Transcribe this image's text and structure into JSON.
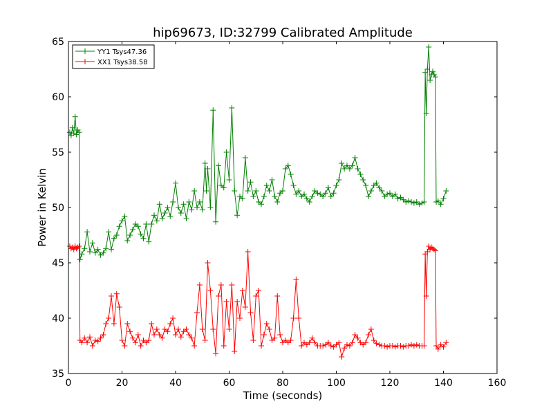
{
  "chart_data": {
    "type": "line",
    "title": "hip69673, ID:32799 Calibrated Amplitude",
    "xlabel": "Time (seconds)",
    "ylabel": "Power in Kelvin",
    "xlim": [
      0,
      160
    ],
    "ylim": [
      35,
      65
    ],
    "xticks": [
      "0",
      "20",
      "40",
      "60",
      "80",
      "100",
      "120",
      "140",
      "160"
    ],
    "yticks": [
      "35",
      "40",
      "45",
      "50",
      "55",
      "60",
      "65"
    ],
    "grid": false,
    "legend_position": "top-left",
    "marker": "plus",
    "series": [
      {
        "name": "YY1 Tsys47.36",
        "color": "#008000",
        "points": [
          [
            0.5,
            56.8
          ],
          [
            1,
            56.5
          ],
          [
            1.5,
            57.2
          ],
          [
            2,
            56.7
          ],
          [
            2.5,
            58.2
          ],
          [
            3,
            56.6
          ],
          [
            3.5,
            57.0
          ],
          [
            4.0,
            56.8
          ],
          [
            4.3,
            45.3
          ],
          [
            5,
            45.8
          ],
          [
            6,
            46.3
          ],
          [
            7,
            47.8
          ],
          [
            8,
            46.0
          ],
          [
            9,
            46.8
          ],
          [
            10,
            45.9
          ],
          [
            11,
            46.2
          ],
          [
            12,
            45.7
          ],
          [
            13,
            45.9
          ],
          [
            14,
            46.3
          ],
          [
            15,
            47.8
          ],
          [
            16,
            46.2
          ],
          [
            17,
            47.2
          ],
          [
            18,
            47.5
          ],
          [
            19,
            48.3
          ],
          [
            20,
            48.8
          ],
          [
            21,
            49.2
          ],
          [
            22,
            47.0
          ],
          [
            23,
            47.5
          ],
          [
            24,
            48.0
          ],
          [
            25,
            48.5
          ],
          [
            26,
            48.3
          ],
          [
            27,
            47.6
          ],
          [
            28,
            47.2
          ],
          [
            29,
            48.5
          ],
          [
            30,
            46.9
          ],
          [
            31,
            48.5
          ],
          [
            32,
            49.3
          ],
          [
            33,
            48.8
          ],
          [
            34,
            50.3
          ],
          [
            35,
            49.0
          ],
          [
            36,
            49.5
          ],
          [
            37,
            50.0
          ],
          [
            38,
            49.2
          ],
          [
            39,
            50.5
          ],
          [
            40,
            52.2
          ],
          [
            41,
            50.0
          ],
          [
            42,
            49.5
          ],
          [
            43,
            50.3
          ],
          [
            44,
            49.0
          ],
          [
            45,
            50.5
          ],
          [
            46,
            49.8
          ],
          [
            47,
            51.5
          ],
          [
            48,
            50.0
          ],
          [
            49,
            50.5
          ],
          [
            50,
            49.8
          ],
          [
            51,
            54.0
          ],
          [
            51.5,
            51.5
          ],
          [
            52,
            53.5
          ],
          [
            53,
            50.0
          ],
          [
            54,
            58.8
          ],
          [
            55,
            48.7
          ],
          [
            56,
            53.8
          ],
          [
            57,
            52.0
          ],
          [
            58,
            51.8
          ],
          [
            59,
            55.0
          ],
          [
            60,
            52.5
          ],
          [
            61,
            59.0
          ],
          [
            62,
            51.5
          ],
          [
            63,
            49.3
          ],
          [
            64,
            51.0
          ],
          [
            65,
            50.8
          ],
          [
            66,
            54.5
          ],
          [
            67,
            51.5
          ],
          [
            68,
            52.3
          ],
          [
            69,
            51.0
          ],
          [
            70,
            51.5
          ],
          [
            71,
            50.5
          ],
          [
            72,
            50.3
          ],
          [
            73,
            51.0
          ],
          [
            74,
            52.0
          ],
          [
            75,
            51.5
          ],
          [
            76,
            52.5
          ],
          [
            77,
            51.0
          ],
          [
            78,
            50.5
          ],
          [
            79,
            51.3
          ],
          [
            80,
            51.5
          ],
          [
            81,
            53.5
          ],
          [
            82,
            53.8
          ],
          [
            83,
            53.0
          ],
          [
            84,
            52.0
          ],
          [
            85,
            51.2
          ],
          [
            86,
            51.5
          ],
          [
            87,
            51.0
          ],
          [
            88,
            51.2
          ],
          [
            89,
            50.8
          ],
          [
            90,
            50.5
          ],
          [
            91,
            51.0
          ],
          [
            92,
            51.5
          ],
          [
            93,
            51.3
          ],
          [
            94,
            51.2
          ],
          [
            95,
            51.0
          ],
          [
            96,
            51.3
          ],
          [
            97,
            51.8
          ],
          [
            98,
            51.0
          ],
          [
            99,
            51.3
          ],
          [
            100,
            52.0
          ],
          [
            101,
            52.5
          ],
          [
            102,
            54.0
          ],
          [
            103,
            53.5
          ],
          [
            104,
            53.8
          ],
          [
            105,
            53.5
          ],
          [
            106,
            53.8
          ],
          [
            107,
            54.5
          ],
          [
            108,
            53.5
          ],
          [
            109,
            53.0
          ],
          [
            110,
            52.5
          ],
          [
            111,
            52.0
          ],
          [
            112,
            51.0
          ],
          [
            113,
            51.5
          ],
          [
            114,
            52.0
          ],
          [
            115,
            52.2
          ],
          [
            116,
            51.8
          ],
          [
            117,
            51.5
          ],
          [
            118,
            51.0
          ],
          [
            119,
            51.2
          ],
          [
            120,
            51.3
          ],
          [
            121,
            51.0
          ],
          [
            122,
            51.2
          ],
          [
            123,
            50.8
          ],
          [
            124,
            50.9
          ],
          [
            125,
            50.7
          ],
          [
            126,
            50.5
          ],
          [
            127,
            50.6
          ],
          [
            128,
            50.5
          ],
          [
            129,
            50.4
          ],
          [
            130,
            50.5
          ],
          [
            131,
            50.3
          ],
          [
            132,
            50.4
          ],
          [
            132.8,
            50.5
          ],
          [
            133.2,
            62.2
          ],
          [
            133.6,
            58.5
          ],
          [
            134,
            62.5
          ],
          [
            134.5,
            64.5
          ],
          [
            135,
            61.5
          ],
          [
            135.5,
            62.0
          ],
          [
            136,
            62.3
          ],
          [
            136.5,
            62.0
          ],
          [
            137,
            61.8
          ],
          [
            137.3,
            50.5
          ],
          [
            138,
            50.6
          ],
          [
            139,
            50.3
          ],
          [
            140,
            50.8
          ],
          [
            141,
            51.5
          ]
        ]
      },
      {
        "name": "XX1 Tsys38.58",
        "color": "#ff0000",
        "points": [
          [
            0.5,
            46.5
          ],
          [
            1,
            46.3
          ],
          [
            1.5,
            46.4
          ],
          [
            2,
            46.2
          ],
          [
            2.5,
            46.5
          ],
          [
            3,
            46.3
          ],
          [
            3.5,
            46.4
          ],
          [
            4.0,
            46.5
          ],
          [
            4.3,
            38.0
          ],
          [
            5,
            37.8
          ],
          [
            6,
            38.2
          ],
          [
            7,
            37.8
          ],
          [
            8,
            38.3
          ],
          [
            9,
            37.5
          ],
          [
            10,
            38.0
          ],
          [
            11,
            37.9
          ],
          [
            12,
            38.2
          ],
          [
            13,
            38.5
          ],
          [
            14,
            39.5
          ],
          [
            15,
            40.0
          ],
          [
            16,
            42.0
          ],
          [
            17,
            39.5
          ],
          [
            18,
            42.2
          ],
          [
            19,
            41.0
          ],
          [
            20,
            38.0
          ],
          [
            21,
            37.5
          ],
          [
            22,
            39.5
          ],
          [
            23,
            38.8
          ],
          [
            24,
            38.2
          ],
          [
            25,
            37.8
          ],
          [
            26,
            38.5
          ],
          [
            27,
            37.5
          ],
          [
            28,
            38.0
          ],
          [
            29,
            37.8
          ],
          [
            30,
            38.0
          ],
          [
            31,
            39.5
          ],
          [
            32,
            38.5
          ],
          [
            33,
            39.0
          ],
          [
            34,
            38.5
          ],
          [
            35,
            38.2
          ],
          [
            36,
            39.0
          ],
          [
            37,
            38.8
          ],
          [
            38,
            39.5
          ],
          [
            39,
            40.0
          ],
          [
            40,
            38.5
          ],
          [
            41,
            39.0
          ],
          [
            42,
            38.3
          ],
          [
            43,
            38.8
          ],
          [
            44,
            39.0
          ],
          [
            45,
            38.5
          ],
          [
            46,
            38.2
          ],
          [
            47,
            37.5
          ],
          [
            48,
            40.5
          ],
          [
            49,
            43.0
          ],
          [
            50,
            39.0
          ],
          [
            51,
            38.0
          ],
          [
            52,
            45.0
          ],
          [
            53,
            42.5
          ],
          [
            54,
            39.0
          ],
          [
            55,
            36.8
          ],
          [
            56,
            42.0
          ],
          [
            57,
            43.0
          ],
          [
            58,
            37.5
          ],
          [
            59,
            41.5
          ],
          [
            60,
            39.0
          ],
          [
            61,
            43.0
          ],
          [
            62,
            37.0
          ],
          [
            63,
            41.5
          ],
          [
            64,
            40.0
          ],
          [
            65,
            42.5
          ],
          [
            66,
            41.0
          ],
          [
            67,
            46.0
          ],
          [
            68,
            40.5
          ],
          [
            69,
            38.0
          ],
          [
            70,
            42.0
          ],
          [
            71,
            42.5
          ],
          [
            72,
            37.5
          ],
          [
            73,
            38.5
          ],
          [
            74,
            39.5
          ],
          [
            75,
            39.0
          ],
          [
            76,
            38.0
          ],
          [
            77,
            38.2
          ],
          [
            78,
            42.0
          ],
          [
            79,
            38.5
          ],
          [
            80,
            37.8
          ],
          [
            81,
            38.0
          ],
          [
            82,
            37.8
          ],
          [
            83,
            38.0
          ],
          [
            84,
            40.0
          ],
          [
            85,
            43.5
          ],
          [
            86,
            40.0
          ],
          [
            87,
            37.5
          ],
          [
            88,
            37.8
          ],
          [
            89,
            37.6
          ],
          [
            90,
            37.8
          ],
          [
            91,
            38.2
          ],
          [
            92,
            37.8
          ],
          [
            93,
            37.5
          ],
          [
            94,
            37.5
          ],
          [
            95,
            37.5
          ],
          [
            96,
            37.6
          ],
          [
            97,
            37.8
          ],
          [
            98,
            37.5
          ],
          [
            99,
            37.4
          ],
          [
            100,
            37.6
          ],
          [
            101,
            37.8
          ],
          [
            102,
            36.5
          ],
          [
            103,
            37.3
          ],
          [
            104,
            37.6
          ],
          [
            105,
            37.5
          ],
          [
            106,
            37.8
          ],
          [
            107,
            38.5
          ],
          [
            108,
            38.2
          ],
          [
            109,
            37.8
          ],
          [
            110,
            37.6
          ],
          [
            111,
            37.8
          ],
          [
            112,
            38.5
          ],
          [
            113,
            39.0
          ],
          [
            114,
            38.0
          ],
          [
            115,
            37.7
          ],
          [
            116,
            37.6
          ],
          [
            117,
            37.5
          ],
          [
            118,
            37.5
          ],
          [
            119,
            37.4
          ],
          [
            120,
            37.5
          ],
          [
            121,
            37.5
          ],
          [
            122,
            37.4
          ],
          [
            123,
            37.5
          ],
          [
            124,
            37.5
          ],
          [
            125,
            37.4
          ],
          [
            126,
            37.5
          ],
          [
            127,
            37.5
          ],
          [
            128,
            37.6
          ],
          [
            129,
            37.5
          ],
          [
            130,
            37.6
          ],
          [
            131,
            37.5
          ],
          [
            132,
            37.5
          ],
          [
            132.8,
            37.5
          ],
          [
            133.2,
            45.8
          ],
          [
            133.6,
            42.0
          ],
          [
            134,
            46.0
          ],
          [
            134.5,
            46.5
          ],
          [
            135,
            46.2
          ],
          [
            135.5,
            46.4
          ],
          [
            136,
            46.3
          ],
          [
            136.5,
            46.2
          ],
          [
            137,
            46.1
          ],
          [
            137.3,
            37.5
          ],
          [
            138,
            37.2
          ],
          [
            139,
            37.6
          ],
          [
            140,
            37.4
          ],
          [
            141,
            37.8
          ]
        ]
      }
    ]
  }
}
